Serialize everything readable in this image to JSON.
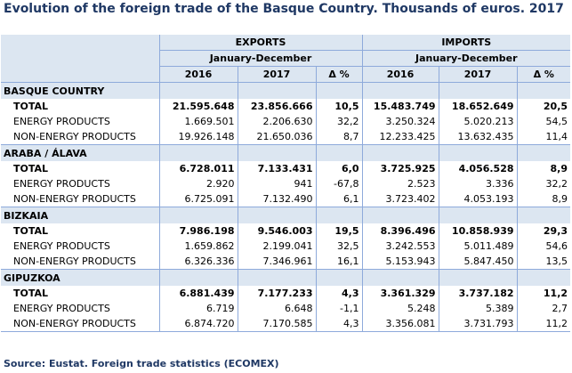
{
  "title": "Evolution of the foreign trade of the Basque Country.  Thousands of euros. 2017",
  "headers": {
    "exports": "EXPORTS",
    "imports": "IMPORTS",
    "period": "January-December",
    "y2016": "2016",
    "y2017": "2017",
    "pct": "Δ %"
  },
  "regions": [
    {
      "name": "BASQUE COUNTRY",
      "rows": [
        {
          "label": "TOTAL",
          "e16": "21.595.648",
          "e17": "23.856.666",
          "ep": "10,5",
          "i16": "15.483.749",
          "i17": "18.652.649",
          "ip": "20,5"
        },
        {
          "label": "ENERGY PRODUCTS",
          "e16": "1.669.501",
          "e17": "2.206.630",
          "ep": "32,2",
          "i16": "3.250.324",
          "i17": "5.020.213",
          "ip": "54,5"
        },
        {
          "label": "NON-ENERGY PRODUCTS",
          "e16": "19.926.148",
          "e17": "21.650.036",
          "ep": "8,7",
          "i16": "12.233.425",
          "i17": "13.632.435",
          "ip": "11,4"
        }
      ]
    },
    {
      "name": "ARABA / ÁLAVA",
      "rows": [
        {
          "label": "TOTAL",
          "e16": "6.728.011",
          "e17": "7.133.431",
          "ep": "6,0",
          "i16": "3.725.925",
          "i17": "4.056.528",
          "ip": "8,9"
        },
        {
          "label": "ENERGY PRODUCTS",
          "e16": "2.920",
          "e17": "941",
          "ep": "-67,8",
          "i16": "2.523",
          "i17": "3.336",
          "ip": "32,2"
        },
        {
          "label": "NON-ENERGY PRODUCTS",
          "e16": "6.725.091",
          "e17": "7.132.490",
          "ep": "6,1",
          "i16": "3.723.402",
          "i17": "4.053.193",
          "ip": "8,9"
        }
      ]
    },
    {
      "name": "BIZKAIA",
      "rows": [
        {
          "label": "TOTAL",
          "e16": "7.986.198",
          "e17": "9.546.003",
          "ep": "19,5",
          "i16": "8.396.496",
          "i17": "10.858.939",
          "ip": "29,3"
        },
        {
          "label": "ENERGY PRODUCTS",
          "e16": "1.659.862",
          "e17": "2.199.041",
          "ep": "32,5",
          "i16": "3.242.553",
          "i17": "5.011.489",
          "ip": "54,6"
        },
        {
          "label": "NON-ENERGY PRODUCTS",
          "e16": "6.326.336",
          "e17": "7.346.961",
          "ep": "16,1",
          "i16": "5.153.943",
          "i17": "5.847.450",
          "ip": "13,5"
        }
      ]
    },
    {
      "name": "GIPUZKOA",
      "rows": [
        {
          "label": "TOTAL",
          "e16": "6.881.439",
          "e17": "7.177.233",
          "ep": "4,3",
          "i16": "3.361.329",
          "i17": "3.737.182",
          "ip": "11,2"
        },
        {
          "label": "ENERGY PRODUCTS",
          "e16": "6.719",
          "e17": "6.648",
          "ep": "-1,1",
          "i16": "5.248",
          "i17": "5.389",
          "ip": "2,7"
        },
        {
          "label": "NON-ENERGY PRODUCTS",
          "e16": "6.874.720",
          "e17": "7.170.585",
          "ep": "4,3",
          "i16": "3.356.081",
          "i17": "3.731.793",
          "ip": "11,2"
        }
      ]
    }
  ],
  "source": "Source: Eustat. Foreign trade statistics (ECOMEX)"
}
